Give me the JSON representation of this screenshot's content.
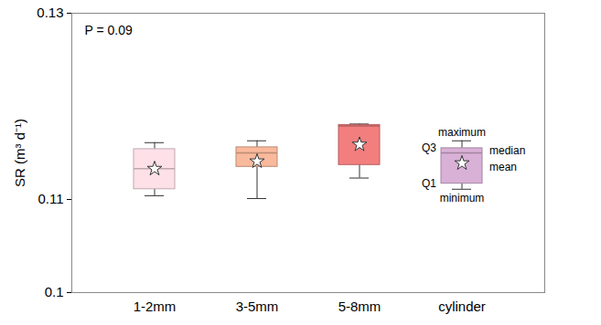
{
  "chart_data": {
    "type": "box",
    "categories": [
      "1-2mm",
      "3-5mm",
      "5-8mm",
      "cylinder"
    ],
    "max": [
      0.1161,
      0.1163,
      0.1181,
      0.1163
    ],
    "q3": [
      0.1154,
      0.1156,
      0.118,
      0.1155
    ],
    "median": [
      0.1133,
      0.115,
      0.1179,
      0.115
    ],
    "mean": [
      0.1133,
      0.1141,
      0.1159,
      0.1139
    ],
    "q1": [
      0.1111,
      0.1135,
      0.1137,
      0.1117
    ],
    "min": [
      0.1104,
      0.1101,
      0.1123,
      0.1111
    ],
    "colors": [
      "#fde0e8",
      "#f9b99c",
      "#f27e7e",
      "#d9b0d6"
    ],
    "y_label": "SR (m³ d⁻¹)",
    "annotation": "P = 0.09",
    "stat_labels": {
      "max": "maximum",
      "q3": "Q3",
      "median": "median",
      "mean": "mean",
      "q1": "Q1",
      "min": "minimum"
    },
    "ylim": [
      0.1,
      0.13
    ],
    "yticks": [
      0.1,
      0.11,
      0.13
    ]
  }
}
